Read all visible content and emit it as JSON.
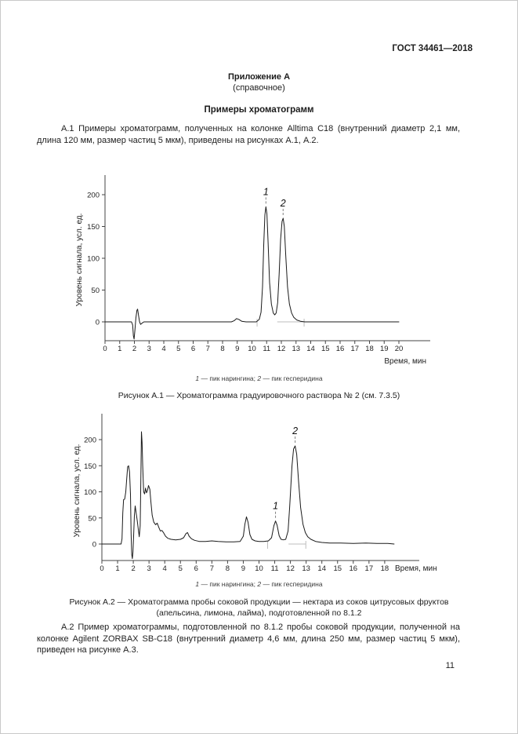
{
  "page": {
    "header": "ГОСТ 34461—2018",
    "appendix_title": "Приложение А",
    "appendix_subtitle": "(справочное)",
    "section_title": "Примеры хроматограмм",
    "paragraph_a1": "А.1 Примеры хроматограмм, полученных на колонке Alltima C18 (внутренний диаметр 2,1 мм, длина 120 мм, размер частиц 5 мкм), приведены на рисунках А.1, А.2.",
    "figure1_legend": {
      "n1": "1",
      "t1": " — пик нарингина; ",
      "n2": "2",
      "t2": " — пик гесперидина"
    },
    "figure1_caption": "Рисунок А.1 — Хроматограмма градуировочного раствора № 2 (см. 7.3.5)",
    "figure2_legend": {
      "n1": "1",
      "t1": " — пик нарингина; ",
      "n2": "2",
      "t2": " — пик гесперидина"
    },
    "figure2_caption_line1": "Рисунок А.2 — Хроматограмма пробы соковой продукции — нектара из соков цитрусовых фруктов",
    "figure2_caption_line2": "(апельсина, лимона, лайма), подготовленной по 8.1.2",
    "paragraph_a2": "А.2 Пример хроматограммы, подготовленной по 8.1.2 пробы соковой продукции, полученной на колонке Agilent ZORBAX SB-C18 (внутренний диаметр 4,6 мм, длина 250 мм, размер частиц 5 мкм), приведен на рисунке А.3.",
    "page_number": "11"
  },
  "chart_data": [
    {
      "type": "line",
      "title": "Хроматограмма градуировочного раствора № 2",
      "xlabel": "Время, мин",
      "ylabel": "Уровень сигнала, усл. ед.",
      "xlim": [
        0,
        20
      ],
      "ylim": [
        -30,
        231
      ],
      "x_ticks": [
        0,
        1,
        2,
        3,
        4,
        5,
        6,
        7,
        8,
        9,
        10,
        11,
        12,
        13,
        14,
        15,
        16,
        17,
        18,
        19,
        20
      ],
      "y_ticks": [
        0,
        50,
        100,
        150,
        200
      ],
      "grid": false,
      "legend_position": "none",
      "peaks": [
        {
          "label": "1",
          "name": "пик нарингина",
          "x": 10.95,
          "y": 181
        },
        {
          "label": "2",
          "name": "пик гесперидина",
          "x": 12.12,
          "y": 163
        }
      ],
      "integration_marks": [
        10.35,
        13.55
      ],
      "baseline_segments": [
        [
          11.72,
          13.55
        ]
      ],
      "series": [
        {
          "name": "signal",
          "points": [
            [
              0,
              0
            ],
            [
              1.5,
              0
            ],
            [
              1.8,
              0
            ],
            [
              1.88,
              -5
            ],
            [
              1.93,
              -22
            ],
            [
              1.98,
              -27
            ],
            [
              2.03,
              -14
            ],
            [
              2.1,
              6
            ],
            [
              2.17,
              18
            ],
            [
              2.22,
              20
            ],
            [
              2.28,
              10
            ],
            [
              2.35,
              0
            ],
            [
              2.42,
              -4
            ],
            [
              2.52,
              -2
            ],
            [
              2.65,
              0
            ],
            [
              3.5,
              0
            ],
            [
              5,
              0
            ],
            [
              7,
              0
            ],
            [
              8.6,
              0
            ],
            [
              8.8,
              2
            ],
            [
              8.95,
              5
            ],
            [
              9.1,
              4
            ],
            [
              9.3,
              1
            ],
            [
              9.6,
              0
            ],
            [
              10.3,
              0
            ],
            [
              10.5,
              4
            ],
            [
              10.62,
              15
            ],
            [
              10.72,
              55
            ],
            [
              10.8,
              120
            ],
            [
              10.88,
              168
            ],
            [
              10.95,
              181
            ],
            [
              11.02,
              170
            ],
            [
              11.1,
              125
            ],
            [
              11.2,
              62
            ],
            [
              11.32,
              28
            ],
            [
              11.45,
              14
            ],
            [
              11.55,
              11
            ],
            [
              11.65,
              14
            ],
            [
              11.75,
              30
            ],
            [
              11.85,
              75
            ],
            [
              11.95,
              130
            ],
            [
              12.05,
              158
            ],
            [
              12.12,
              163
            ],
            [
              12.2,
              150
            ],
            [
              12.3,
              105
            ],
            [
              12.42,
              55
            ],
            [
              12.55,
              28
            ],
            [
              12.7,
              14
            ],
            [
              12.85,
              7
            ],
            [
              13.05,
              3
            ],
            [
              13.3,
              1
            ],
            [
              13.6,
              0
            ],
            [
              14.5,
              0
            ],
            [
              16,
              0
            ],
            [
              18,
              0
            ],
            [
              20,
              0
            ]
          ]
        }
      ]
    },
    {
      "type": "line",
      "title": "Хроматограмма пробы соковой продукции — нектара из соков цитрусовых фруктов",
      "xlabel": "Время, мин",
      "ylabel": "Уровень сигнала, усл. ед.",
      "xlim": [
        0,
        18.7
      ],
      "ylim": [
        -31,
        250
      ],
      "x_ticks": [
        0,
        1,
        2,
        3,
        4,
        5,
        6,
        7,
        8,
        9,
        10,
        11,
        12,
        13,
        14,
        15,
        16,
        17,
        18
      ],
      "y_ticks": [
        0,
        50,
        100,
        150,
        200
      ],
      "grid": false,
      "legend_position": "none",
      "peaks": [
        {
          "label": "1",
          "name": "пик нарингина",
          "x": 11.05,
          "y": 44
        },
        {
          "label": "2",
          "name": "пик гесперидина",
          "x": 12.3,
          "y": 188
        }
      ],
      "integration_marks": [
        10.55,
        12.98
      ],
      "baseline_segments": [
        [
          11.88,
          12.98
        ]
      ],
      "series": [
        {
          "name": "signal",
          "points": [
            [
              0,
              0
            ],
            [
              1.22,
              0
            ],
            [
              1.28,
              10
            ],
            [
              1.33,
              60
            ],
            [
              1.38,
              85
            ],
            [
              1.45,
              86
            ],
            [
              1.52,
              100
            ],
            [
              1.58,
              125
            ],
            [
              1.64,
              148
            ],
            [
              1.7,
              150
            ],
            [
              1.76,
              138
            ],
            [
              1.82,
              95
            ],
            [
              1.86,
              20
            ],
            [
              1.9,
              -20
            ],
            [
              1.94,
              -28
            ],
            [
              1.98,
              -15
            ],
            [
              2.02,
              15
            ],
            [
              2.07,
              55
            ],
            [
              2.12,
              73
            ],
            [
              2.18,
              60
            ],
            [
              2.25,
              45
            ],
            [
              2.32,
              28
            ],
            [
              2.38,
              14
            ],
            [
              2.44,
              35
            ],
            [
              2.48,
              120
            ],
            [
              2.52,
              215
            ],
            [
              2.56,
              195
            ],
            [
              2.6,
              150
            ],
            [
              2.66,
              100
            ],
            [
              2.72,
              96
            ],
            [
              2.78,
              107
            ],
            [
              2.84,
              98
            ],
            [
              2.9,
              102
            ],
            [
              2.97,
              112
            ],
            [
              3.05,
              105
            ],
            [
              3.12,
              80
            ],
            [
              3.2,
              55
            ],
            [
              3.3,
              42
            ],
            [
              3.42,
              37
            ],
            [
              3.52,
              40
            ],
            [
              3.62,
              32
            ],
            [
              3.72,
              25
            ],
            [
              3.82,
              26
            ],
            [
              3.92,
              22
            ],
            [
              4.05,
              15
            ],
            [
              4.2,
              11
            ],
            [
              4.4,
              9
            ],
            [
              4.7,
              8
            ],
            [
              5.0,
              9
            ],
            [
              5.2,
              12
            ],
            [
              5.35,
              20
            ],
            [
              5.45,
              22
            ],
            [
              5.55,
              15
            ],
            [
              5.7,
              10
            ],
            [
              5.9,
              7
            ],
            [
              6.2,
              5
            ],
            [
              6.6,
              5
            ],
            [
              7.0,
              6
            ],
            [
              7.4,
              5
            ],
            [
              7.9,
              4
            ],
            [
              8.4,
              4
            ],
            [
              8.8,
              5
            ],
            [
              9.0,
              15
            ],
            [
              9.1,
              38
            ],
            [
              9.2,
              52
            ],
            [
              9.3,
              42
            ],
            [
              9.42,
              18
            ],
            [
              9.55,
              9
            ],
            [
              9.75,
              6
            ],
            [
              10.0,
              5
            ],
            [
              10.3,
              5
            ],
            [
              10.6,
              6
            ],
            [
              10.8,
              12
            ],
            [
              10.95,
              35
            ],
            [
              11.05,
              44
            ],
            [
              11.15,
              36
            ],
            [
              11.28,
              16
            ],
            [
              11.4,
              9
            ],
            [
              11.55,
              8
            ],
            [
              11.7,
              9
            ],
            [
              11.85,
              25
            ],
            [
              11.95,
              70
            ],
            [
              12.1,
              150
            ],
            [
              12.2,
              182
            ],
            [
              12.3,
              188
            ],
            [
              12.4,
              172
            ],
            [
              12.52,
              120
            ],
            [
              12.65,
              70
            ],
            [
              12.8,
              38
            ],
            [
              12.95,
              22
            ],
            [
              13.1,
              14
            ],
            [
              13.3,
              9
            ],
            [
              13.6,
              5
            ],
            [
              14.0,
              3
            ],
            [
              14.5,
              2
            ],
            [
              15.2,
              2
            ],
            [
              16.0,
              1
            ],
            [
              16.8,
              2
            ],
            [
              17.5,
              1
            ],
            [
              18.2,
              1
            ],
            [
              18.6,
              0
            ]
          ]
        }
      ]
    }
  ]
}
